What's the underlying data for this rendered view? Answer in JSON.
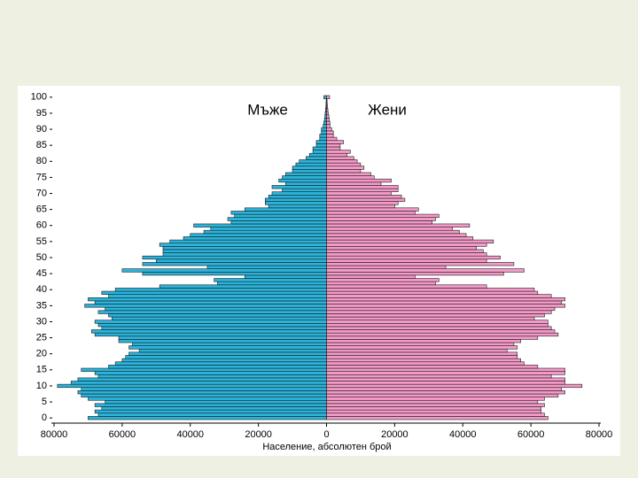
{
  "chart_data": {
    "type": "pyramid",
    "x_label": "Население, абсолютен брой",
    "y": [
      0,
      1,
      2,
      3,
      4,
      5,
      6,
      7,
      8,
      9,
      10,
      11,
      12,
      13,
      14,
      15,
      16,
      17,
      18,
      19,
      20,
      21,
      22,
      23,
      24,
      25,
      26,
      27,
      28,
      29,
      30,
      31,
      32,
      33,
      34,
      35,
      36,
      37,
      38,
      39,
      40,
      41,
      42,
      43,
      44,
      45,
      46,
      47,
      48,
      49,
      50,
      51,
      52,
      53,
      54,
      55,
      56,
      57,
      58,
      59,
      60,
      61,
      62,
      63,
      64,
      65,
      66,
      67,
      68,
      69,
      70,
      71,
      72,
      73,
      74,
      75,
      76,
      77,
      78,
      79,
      80,
      81,
      82,
      83,
      84,
      85,
      86,
      87,
      88,
      89,
      90,
      91,
      92,
      93,
      94,
      95,
      96,
      97,
      98,
      99,
      100
    ],
    "series": [
      {
        "name": "Мъже",
        "color": "#2ab4dc",
        "side": "left",
        "values": [
          70000,
          67000,
          68000,
          66000,
          68000,
          65000,
          70000,
          72000,
          73000,
          72000,
          79000,
          75000,
          73000,
          67000,
          68000,
          72000,
          64000,
          62000,
          60000,
          59000,
          58000,
          55000,
          58000,
          57000,
          61000,
          61000,
          68000,
          69000,
          66000,
          67000,
          68000,
          63000,
          64000,
          67000,
          65000,
          71000,
          68000,
          70000,
          64000,
          66000,
          62000,
          49000,
          32000,
          33000,
          24000,
          54000,
          60000,
          35000,
          54000,
          50000,
          54000,
          48000,
          48000,
          48000,
          49000,
          46000,
          42000,
          40000,
          36000,
          34000,
          39000,
          28000,
          29000,
          27000,
          28000,
          24000,
          17000,
          18000,
          18000,
          17000,
          16000,
          13000,
          16000,
          12000,
          14000,
          13000,
          12000,
          10000,
          10000,
          9000,
          8000,
          6000,
          5000,
          4000,
          4000,
          3000,
          3000,
          2000,
          2000,
          1500,
          1500,
          1000,
          800,
          600,
          500,
          400,
          300,
          200,
          150,
          100,
          800
        ]
      },
      {
        "name": "Жени",
        "color": "#f59ac8",
        "side": "right",
        "values": [
          65000,
          64000,
          63000,
          63000,
          64000,
          62000,
          64000,
          68000,
          70000,
          69000,
          75000,
          70000,
          70000,
          66000,
          70000,
          70000,
          62000,
          58000,
          57000,
          56000,
          56000,
          53000,
          56000,
          55000,
          57000,
          62000,
          68000,
          67000,
          66000,
          65000,
          65000,
          61000,
          64000,
          66000,
          67000,
          70000,
          69000,
          70000,
          66000,
          62000,
          61000,
          47000,
          32000,
          33000,
          26000,
          52000,
          58000,
          35000,
          55000,
          47000,
          51000,
          47000,
          46000,
          44000,
          47000,
          49000,
          43000,
          41000,
          39000,
          37000,
          42000,
          31000,
          32000,
          33000,
          26000,
          27000,
          20000,
          21000,
          23000,
          22000,
          19000,
          21000,
          21000,
          16000,
          19000,
          14000,
          13000,
          10000,
          11000,
          10000,
          9000,
          8000,
          6000,
          7000,
          4000,
          4000,
          5000,
          3000,
          2000,
          2000,
          1500,
          1000,
          1000,
          800,
          700,
          500,
          400,
          300,
          200,
          150,
          900
        ]
      }
    ],
    "xlim": [
      -80000,
      80000
    ],
    "xticks": [
      {
        "value": -80000,
        "label": "80000"
      },
      {
        "value": -60000,
        "label": "60000"
      },
      {
        "value": -40000,
        "label": "40000"
      },
      {
        "value": -20000,
        "label": "20000"
      },
      0,
      20000,
      40000,
      60000,
      80000
    ],
    "ylim": [
      -0.5,
      100.5
    ],
    "yticks": [
      0,
      5,
      10,
      15,
      20,
      25,
      30,
      35,
      40,
      45,
      50,
      55,
      60,
      65,
      70,
      75,
      80,
      85,
      90,
      95,
      100
    ]
  }
}
